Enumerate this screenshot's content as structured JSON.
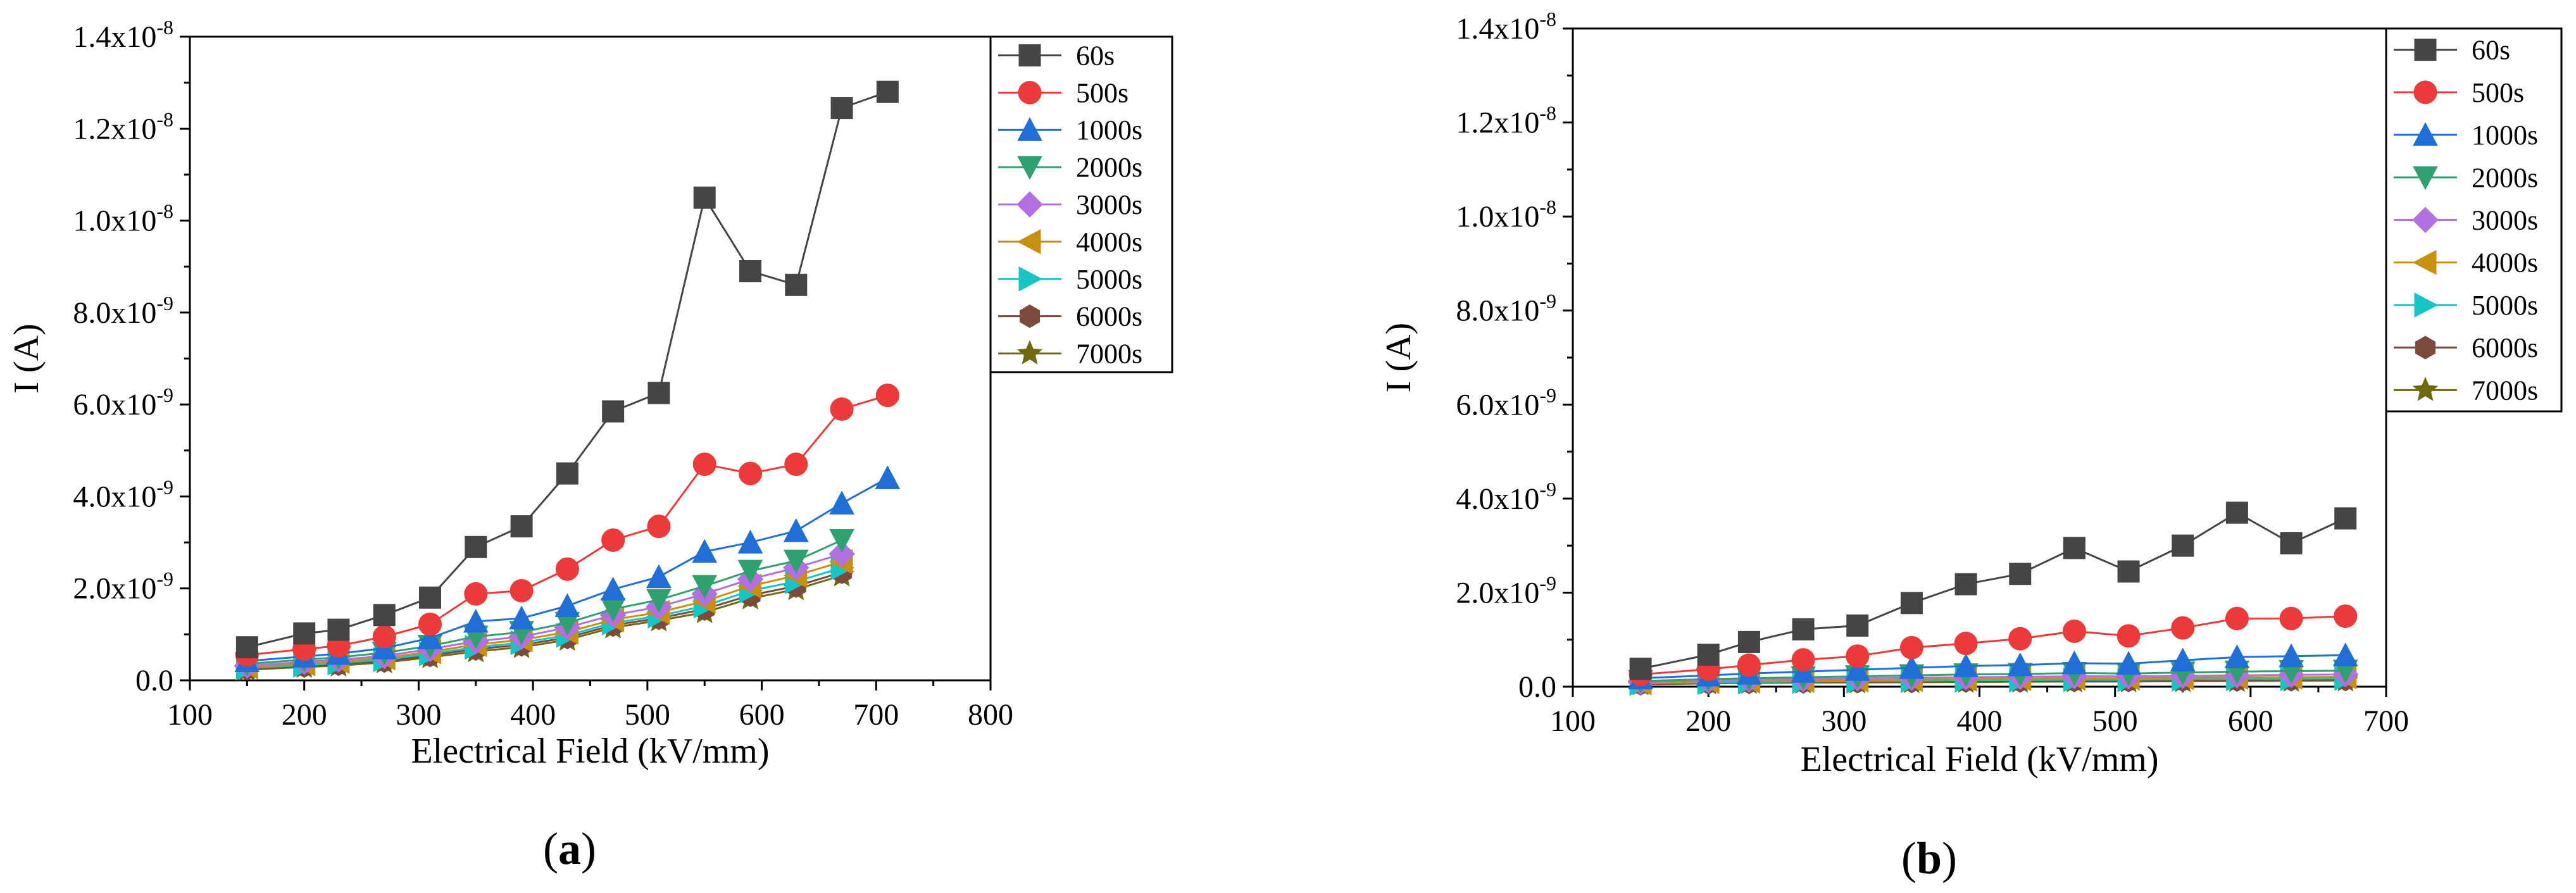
{
  "chart_data": [
    {
      "type": "line",
      "panel_label": "a",
      "xlabel": "Electrical Field (kV/mm)",
      "ylabel": "I (A)",
      "xlim": [
        100,
        800
      ],
      "ylim": [
        0,
        1.4e-08
      ],
      "x_ticks": [
        100,
        200,
        300,
        400,
        500,
        600,
        700,
        800
      ],
      "y_ticks": [
        {
          "mantissa": "0.0",
          "exp": ""
        },
        {
          "mantissa": "2.0x10",
          "exp": "-9"
        },
        {
          "mantissa": "4.0x10",
          "exp": "-9"
        },
        {
          "mantissa": "6.0x10",
          "exp": "-9"
        },
        {
          "mantissa": "8.0x10",
          "exp": "-9"
        },
        {
          "mantissa": "1.0x10",
          "exp": "-8"
        },
        {
          "mantissa": "1.2x10",
          "exp": "-8"
        },
        {
          "mantissa": "1.4x10",
          "exp": "-8"
        }
      ],
      "legend_position": "top-right",
      "series": [
        {
          "name": "60s",
          "marker": "square",
          "color": "#454545",
          "x": [
            150,
            200,
            230,
            270,
            310,
            350,
            390,
            430,
            470,
            510,
            550,
            590,
            630,
            670,
            710
          ],
          "y": [
            7.2e-10,
            1.02e-09,
            1.1e-09,
            1.42e-09,
            1.8e-09,
            2.9e-09,
            3.35e-09,
            4.5e-09,
            5.85e-09,
            6.25e-09,
            1.05e-08,
            8.9e-09,
            8.6e-09,
            1.245e-08,
            1.28e-08
          ]
        },
        {
          "name": "500s",
          "marker": "circle",
          "color": "#ec3a3a",
          "x": [
            150,
            200,
            230,
            270,
            310,
            350,
            390,
            430,
            470,
            510,
            550,
            590,
            630,
            670,
            710
          ],
          "y": [
            5.5e-10,
            6.8e-10,
            7.5e-10,
            9.5e-10,
            1.22e-09,
            1.88e-09,
            1.95e-09,
            2.42e-09,
            3.05e-09,
            3.35e-09,
            4.7e-09,
            4.5e-09,
            4.7e-09,
            5.9e-09,
            6.2e-09
          ]
        },
        {
          "name": "1000s",
          "marker": "triangle-up",
          "color": "#1f6fd6",
          "x": [
            150,
            200,
            230,
            270,
            310,
            350,
            390,
            430,
            470,
            510,
            550,
            590,
            630,
            670,
            710
          ],
          "y": [
            4.2e-10,
            5.2e-10,
            5.8e-10,
            7e-10,
            9.2e-10,
            1.28e-09,
            1.35e-09,
            1.62e-09,
            1.98e-09,
            2.25e-09,
            2.8e-09,
            3e-09,
            3.25e-09,
            3.85e-09,
            4.4e-09
          ]
        },
        {
          "name": "2000s",
          "marker": "triangle-down",
          "color": "#2ea16e",
          "x": [
            150,
            200,
            230,
            270,
            310,
            350,
            390,
            430,
            470,
            510,
            550,
            590,
            630,
            670
          ],
          "y": [
            3.6e-10,
            4.5e-10,
            5e-10,
            6e-10,
            7.5e-10,
            9.5e-10,
            1.05e-09,
            1.25e-09,
            1.55e-09,
            1.75e-09,
            2.05e-09,
            2.38e-09,
            2.6e-09,
            3.05e-09
          ]
        },
        {
          "name": "3000s",
          "marker": "diamond",
          "color": "#b26fe0",
          "x": [
            150,
            200,
            230,
            270,
            310,
            350,
            390,
            430,
            470,
            510,
            550,
            590,
            630,
            670
          ],
          "y": [
            3.2e-10,
            4e-10,
            4.5e-10,
            5.3e-10,
            6.8e-10,
            8.5e-10,
            9.5e-10,
            1.15e-09,
            1.42e-09,
            1.6e-09,
            1.88e-09,
            2.2e-09,
            2.45e-09,
            2.75e-09
          ]
        },
        {
          "name": "4000s",
          "marker": "triangle-left",
          "color": "#c7900f",
          "x": [
            150,
            200,
            230,
            270,
            310,
            350,
            390,
            430,
            470,
            510,
            550,
            590,
            630,
            670
          ],
          "y": [
            2.9e-10,
            3.6e-10,
            4.1e-10,
            4.9e-10,
            6.2e-10,
            7.8e-10,
            8.8e-10,
            1.05e-09,
            1.32e-09,
            1.48e-09,
            1.72e-09,
            2.05e-09,
            2.28e-09,
            2.58e-09
          ]
        },
        {
          "name": "5000s",
          "marker": "triangle-right",
          "color": "#17c4c4",
          "x": [
            150,
            200,
            230,
            270,
            310,
            350,
            390,
            430,
            470,
            510,
            550,
            590,
            630,
            670
          ],
          "y": [
            2.7e-10,
            3.3e-10,
            3.8e-10,
            4.5e-10,
            5.8e-10,
            7.2e-10,
            8.2e-10,
            9.8e-10,
            1.25e-09,
            1.4e-09,
            1.62e-09,
            1.95e-09,
            2.15e-09,
            2.45e-09
          ]
        },
        {
          "name": "6000s",
          "marker": "hexagon",
          "color": "#7b4a3d",
          "x": [
            150,
            200,
            230,
            270,
            310,
            350,
            390,
            430,
            470,
            510,
            550,
            590,
            630,
            670
          ],
          "y": [
            2.5e-10,
            3.1e-10,
            3.5e-10,
            4.2e-10,
            5.4e-10,
            6.8e-10,
            7.7e-10,
            9.3e-10,
            1.2e-09,
            1.35e-09,
            1.55e-09,
            1.85e-09,
            2.05e-09,
            2.35e-09
          ]
        },
        {
          "name": "7000s",
          "marker": "star",
          "color": "#6f6a10",
          "x": [
            150,
            200,
            230,
            270,
            310,
            350,
            390,
            430,
            470,
            510,
            550,
            590,
            630,
            670
          ],
          "y": [
            2.3e-10,
            2.9e-10,
            3.2e-10,
            3.9e-10,
            5e-10,
            6.3e-10,
            7.2e-10,
            8.8e-10,
            1.15e-09,
            1.3e-09,
            1.48e-09,
            1.78e-09,
            1.98e-09,
            2.28e-09
          ]
        }
      ]
    },
    {
      "type": "line",
      "panel_label": "b",
      "xlabel": "Electrical Field (kV/mm)",
      "ylabel": "I (A)",
      "xlim": [
        100,
        700
      ],
      "ylim": [
        0,
        1.4e-08
      ],
      "x_ticks": [
        100,
        200,
        300,
        400,
        500,
        600,
        700
      ],
      "y_ticks": [
        {
          "mantissa": "0.0",
          "exp": ""
        },
        {
          "mantissa": "2.0x10",
          "exp": "-9"
        },
        {
          "mantissa": "4.0x10",
          "exp": "-9"
        },
        {
          "mantissa": "6.0x10",
          "exp": "-9"
        },
        {
          "mantissa": "8.0x10",
          "exp": "-9"
        },
        {
          "mantissa": "1.0x10",
          "exp": "-8"
        },
        {
          "mantissa": "1.2x10",
          "exp": "-8"
        },
        {
          "mantissa": "1.4x10",
          "exp": "-8"
        }
      ],
      "legend_position": "top-right",
      "series": [
        {
          "name": "60s",
          "marker": "square",
          "color": "#454545",
          "x": [
            150,
            200,
            230,
            270,
            310,
            350,
            390,
            430,
            470,
            510,
            550,
            590,
            630,
            670
          ],
          "y": [
            3.8e-10,
            6.8e-10,
            9.5e-10,
            1.22e-09,
            1.3e-09,
            1.78e-09,
            2.18e-09,
            2.4e-09,
            2.95e-09,
            2.45e-09,
            3e-09,
            3.7e-09,
            3.05e-09,
            3.58e-09
          ]
        },
        {
          "name": "500s",
          "marker": "circle",
          "color": "#ec3a3a",
          "x": [
            150,
            200,
            230,
            270,
            310,
            350,
            390,
            430,
            470,
            510,
            550,
            590,
            630,
            670
          ],
          "y": [
            2.6e-10,
            3.7e-10,
            4.6e-10,
            5.7e-10,
            6.5e-10,
            8.3e-10,
            9.2e-10,
            1.02e-09,
            1.18e-09,
            1.08e-09,
            1.25e-09,
            1.45e-09,
            1.45e-09,
            1.5e-09
          ]
        },
        {
          "name": "1000s",
          "marker": "triangle-up",
          "color": "#1f6fd6",
          "x": [
            150,
            200,
            230,
            270,
            310,
            350,
            390,
            430,
            470,
            510,
            550,
            590,
            630,
            670
          ],
          "y": [
            1.8e-10,
            2.4e-10,
            2.8e-10,
            3.2e-10,
            3.6e-10,
            4e-10,
            4.4e-10,
            4.6e-10,
            5e-10,
            4.9e-10,
            5.6e-10,
            6.3e-10,
            6.5e-10,
            6.7e-10
          ]
        },
        {
          "name": "2000s",
          "marker": "triangle-down",
          "color": "#2ea16e",
          "x": [
            150,
            200,
            230,
            270,
            310,
            350,
            390,
            430,
            470,
            510,
            550,
            590,
            630,
            670
          ],
          "y": [
            1.2e-10,
            1.6e-10,
            1.8e-10,
            2e-10,
            2.2e-10,
            2.4e-10,
            2.6e-10,
            2.7e-10,
            2.9e-10,
            2.8e-10,
            3e-10,
            3.2e-10,
            3.3e-10,
            3.4e-10
          ]
        },
        {
          "name": "3000s",
          "marker": "diamond",
          "color": "#b26fe0",
          "x": [
            150,
            200,
            230,
            270,
            310,
            350,
            390,
            430,
            470,
            510,
            550,
            590,
            630,
            670
          ],
          "y": [
            1e-10,
            1.3e-10,
            1.5e-10,
            1.6e-10,
            1.8e-10,
            1.9e-10,
            2e-10,
            2.1e-10,
            2.2e-10,
            2.2e-10,
            2.3e-10,
            2.4e-10,
            2.5e-10,
            2.6e-10
          ]
        },
        {
          "name": "4000s",
          "marker": "triangle-left",
          "color": "#c7900f",
          "x": [
            150,
            200,
            230,
            270,
            310,
            350,
            390,
            430,
            470,
            510,
            550,
            590,
            630,
            670
          ],
          "y": [
            8e-11,
            1.1e-10,
            1.2e-10,
            1.3e-10,
            1.4e-10,
            1.5e-10,
            1.6e-10,
            1.7e-10,
            1.8e-10,
            1.8e-10,
            1.9e-10,
            2e-10,
            2e-10,
            2.1e-10
          ]
        },
        {
          "name": "5000s",
          "marker": "triangle-right",
          "color": "#17c4c4",
          "x": [
            150,
            200,
            230,
            270,
            310,
            350,
            390,
            430,
            470,
            510,
            550,
            590,
            630,
            670
          ],
          "y": [
            7e-11,
            9e-11,
            1e-10,
            1.1e-10,
            1.2e-10,
            1.3e-10,
            1.4e-10,
            1.4e-10,
            1.5e-10,
            1.5e-10,
            1.6e-10,
            1.7e-10,
            1.7e-10,
            1.8e-10
          ]
        },
        {
          "name": "6000s",
          "marker": "hexagon",
          "color": "#7b4a3d",
          "x": [
            150,
            200,
            230,
            270,
            310,
            350,
            390,
            430,
            470,
            510,
            550,
            590,
            630,
            670
          ],
          "y": [
            6e-11,
            8e-11,
            9e-11,
            1e-10,
            1.05e-10,
            1.1e-10,
            1.2e-10,
            1.2e-10,
            1.3e-10,
            1.3e-10,
            1.35e-10,
            1.4e-10,
            1.45e-10,
            1.5e-10
          ]
        },
        {
          "name": "7000s",
          "marker": "star",
          "color": "#6f6a10",
          "x": [
            150,
            200,
            230,
            270,
            310,
            350,
            390,
            430,
            470,
            510,
            550,
            590,
            630,
            670
          ],
          "y": [
            5e-11,
            7e-11,
            8e-11,
            8.5e-11,
            9e-11,
            9.5e-11,
            1e-10,
            1.05e-10,
            1.1e-10,
            1.1e-10,
            1.15e-10,
            1.2e-10,
            1.25e-10,
            1.3e-10
          ]
        }
      ]
    }
  ]
}
